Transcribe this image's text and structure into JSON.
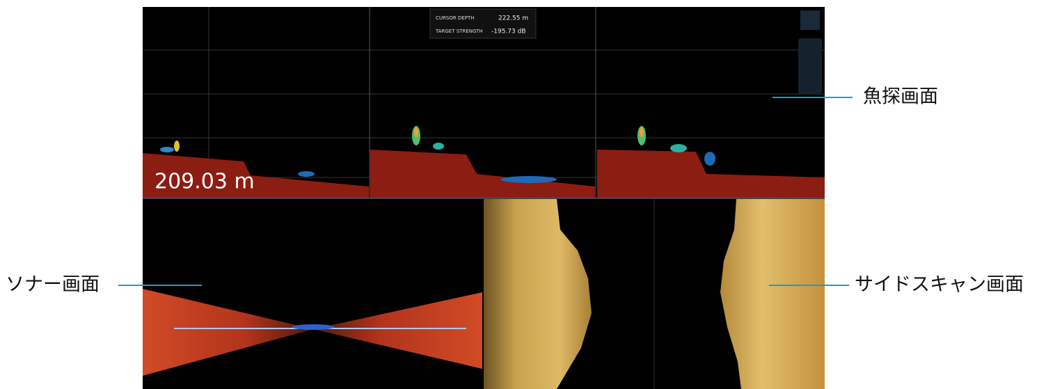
{
  "overlay": {
    "cursor_depth_label": "CURSOR DEPTH",
    "cursor_depth_value": "222.55 m",
    "target_strength_label": "TARGET STRENGTH",
    "target_strength_value": "-195.73 dB"
  },
  "depth_readout": "209.03 m",
  "callouts": {
    "fish_finder": "魚探画面",
    "sonar": "ソナー画面",
    "side_scan": "サイドスキャン画面"
  }
}
